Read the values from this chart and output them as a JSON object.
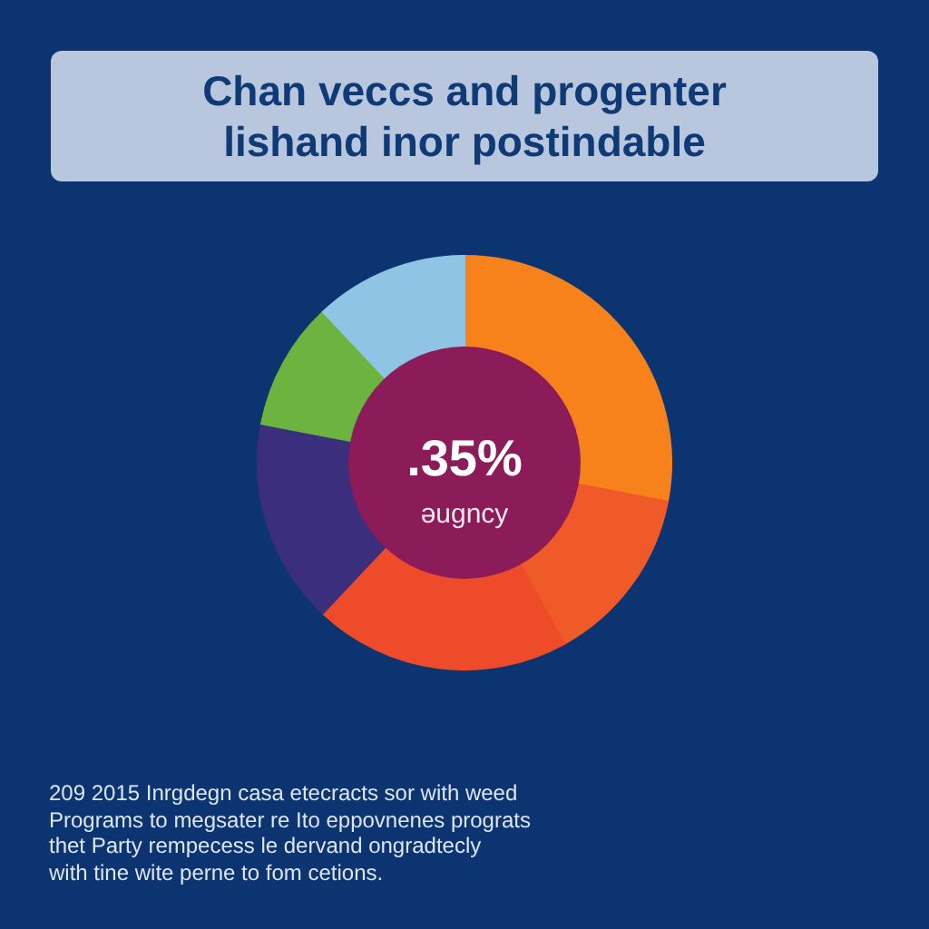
{
  "chart_data": {
    "type": "donut",
    "title": "Chan veccs and progenter lishand inor postindable",
    "categories": [
      null,
      null,
      null,
      null,
      null,
      null
    ],
    "values": [
      28,
      14,
      20,
      16,
      10,
      12
    ],
    "colors": [
      "#f7821c",
      "#f05a29",
      "#ee4b2b",
      "#3a2e7d",
      "#6cb33f",
      "#8fc4e4"
    ],
    "legend": false,
    "annotations": [
      ".35%",
      "əugncy",
      "209 2015 Inrgdegn casa etecracts sor with weed",
      "Programs to megsater re Ito eppovnenes prograts",
      "thet Party rempecess le dervand ongradtecly",
      "with tine wite perne to fom cetions."
    ]
  }
}
